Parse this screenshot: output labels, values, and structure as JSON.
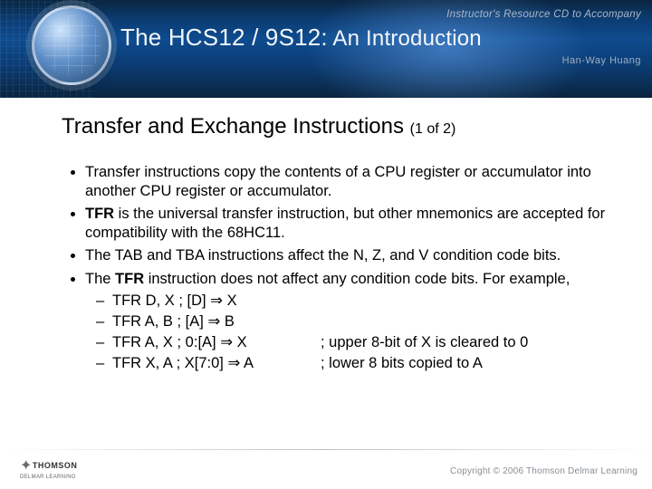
{
  "header": {
    "subtitle_top": "Instructor's Resource CD to Accompany",
    "main_title_prefix": "The ",
    "main_title_strong": "HCS12 / 9S12:",
    "main_title_suffix": " An Introduction",
    "author": "Han-Way Huang"
  },
  "slide": {
    "title": "Transfer and Exchange Instructions ",
    "title_suffix": "(1 of 2)",
    "bullets": [
      {
        "text_parts": [
          "Transfer instructions copy the contents of a CPU register or accumulator into another CPU register or accumulator."
        ]
      },
      {
        "text_parts": [
          "",
          "TFR",
          " is the universal transfer instruction, but other mnemonics are accepted for compatibility with the 68HC11."
        ]
      },
      {
        "text_parts": [
          "The TAB and TBA instructions affect the N, Z, and V condition code bits."
        ]
      },
      {
        "text_parts": [
          "The ",
          "TFR",
          " instruction does not affect any condition code bits. For example,"
        ],
        "sub": [
          {
            "left": "TFR  D, X ; [D] ⇒ X",
            "right": ""
          },
          {
            "left": "TFR  A, B ; [A] ⇒ B",
            "right": ""
          },
          {
            "left": "TFR  A, X ; 0:[A] ⇒ X",
            "right": "; upper 8-bit of X is cleared to 0"
          },
          {
            "left": "TFR  X, A ; X[7:0] ⇒ A",
            "right": "; lower 8 bits copied to A"
          }
        ]
      }
    ]
  },
  "footer": {
    "brand": "THOMSON",
    "sub_brand": "DELMAR LEARNING",
    "copyright": "Copyright © 2006 Thomson Delmar Learning"
  }
}
